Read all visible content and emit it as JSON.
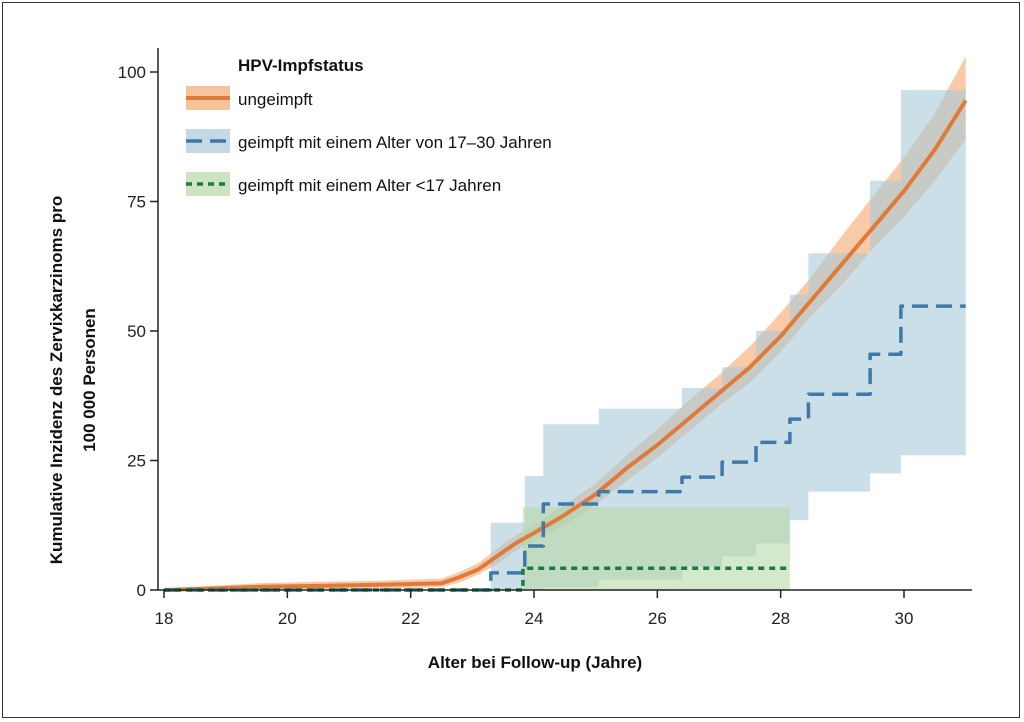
{
  "chart_data": {
    "type": "line",
    "subtype": "step-survival-with-confidence-bands",
    "xlabel": "Alter bei Follow-up (Jahre)",
    "ylabel_line1": "Kumulative Inzidenz des Zervixkarzinoms pro",
    "ylabel_line2": "100 000 Personen",
    "xlim": [
      18,
      31.2
    ],
    "ylim": [
      0,
      100
    ],
    "x_ticks": [
      18,
      20,
      22,
      24,
      26,
      28,
      30
    ],
    "y_ticks": [
      0,
      25,
      50,
      75,
      100
    ],
    "grid": false,
    "legend": {
      "title": "HPV-Impfstatus",
      "placement": "top-left"
    },
    "series": [
      {
        "name": "ungeimpft",
        "color": "#e07a3a",
        "band_color": "#f6b88a",
        "style": "solid",
        "x": [
          18,
          18.8,
          19.5,
          20.5,
          21.5,
          22.5,
          22.8,
          23.1,
          23.4,
          23.7,
          24.0,
          24.5,
          25.0,
          25.5,
          26.0,
          26.5,
          27.0,
          27.5,
          28.0,
          28.5,
          29.0,
          29.5,
          30.0,
          30.5,
          31.0
        ],
        "y": [
          0,
          0.3,
          0.6,
          0.8,
          1.0,
          1.3,
          2.5,
          4.0,
          6.5,
          9.0,
          11.0,
          14.5,
          18.5,
          23.5,
          28.0,
          33.0,
          38.0,
          43.0,
          49.0,
          56.0,
          63.0,
          70.0,
          77.0,
          85.0,
          94.5
        ],
        "lower": [
          0,
          0.0,
          0.1,
          0.2,
          0.3,
          0.5,
          1.5,
          3.0,
          5.0,
          7.5,
          9.5,
          12.5,
          16.5,
          21.0,
          25.5,
          30.5,
          35.5,
          40.0,
          46.0,
          53.0,
          59.0,
          66.0,
          72.0,
          79.0,
          87.0
        ],
        "upper": [
          0,
          0.8,
          1.3,
          1.6,
          1.8,
          2.2,
          3.5,
          5.2,
          8.0,
          10.5,
          12.5,
          16.5,
          20.5,
          26.0,
          31.0,
          36.5,
          41.5,
          47.0,
          53.5,
          60.5,
          68.5,
          76.0,
          83.5,
          92.0,
          103.0
        ]
      },
      {
        "name": "geimpft mit einem Alter von 17–30 Jahren",
        "color": "#3f79a8",
        "band_color": "#a9c9d9",
        "style": "dashed",
        "x": [
          18,
          22.6,
          23.3,
          23.85,
          24.15,
          25.05,
          26.4,
          27.05,
          27.6,
          28.15,
          28.45,
          29.45,
          29.95,
          31.0
        ],
        "y": [
          0,
          0,
          3.3,
          8.5,
          16.6,
          19.0,
          21.8,
          24.7,
          28.5,
          33.0,
          37.8,
          45.5,
          54.8,
          54.8
        ],
        "lower": [
          0,
          0,
          0.0,
          0.0,
          0.5,
          2.0,
          4.5,
          6.5,
          9.0,
          13.5,
          19.0,
          22.5,
          26.0,
          31.0
        ],
        "upper": [
          0,
          0,
          13.0,
          22.0,
          32.0,
          35.0,
          39.0,
          43.0,
          50.0,
          57.0,
          65.0,
          79.0,
          96.5,
          96.5
        ]
      },
      {
        "name": "geimpft mit einem Alter <17 Jahren",
        "color": "#1b7a3e",
        "band_color": "#b8d8a8",
        "style": "dotted",
        "x": [
          18,
          23.65,
          23.82,
          28.15
        ],
        "y": [
          0,
          0,
          4.2,
          4.2
        ],
        "lower": [
          0,
          0,
          0,
          0
        ],
        "upper": [
          0,
          0,
          16.0,
          16.0
        ]
      }
    ]
  }
}
